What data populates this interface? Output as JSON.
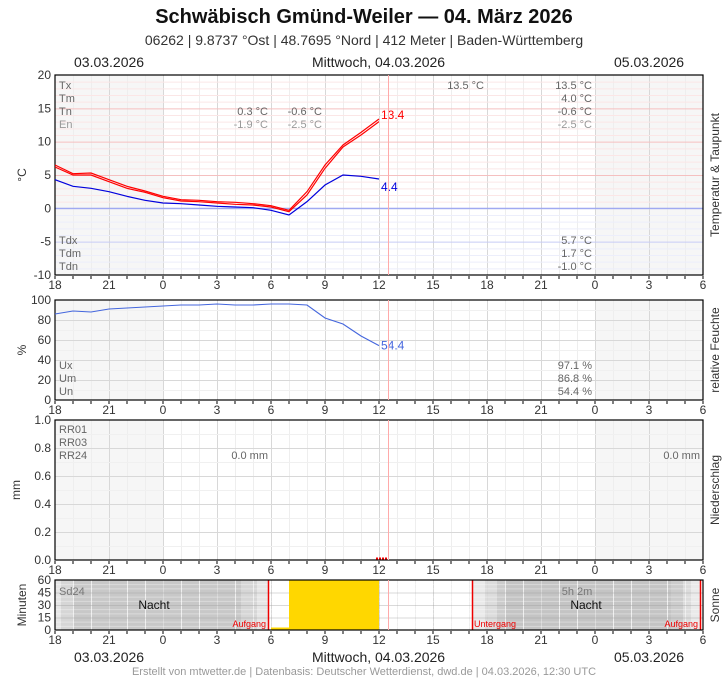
{
  "header": {
    "title": "Schwäbisch Gmünd-Weiler  —  04. März 2026",
    "subtitle": "06262  |  9.8737 °Ost  |  48.7695 °Nord  |  412 Meter  |  Baden-Württemberg",
    "date_left": "03.03.2026",
    "date_center": "Mittwoch, 04.03.2026",
    "date_right": "05.03.2026"
  },
  "footer": {
    "date_left": "03.03.2026",
    "date_center": "Mittwoch, 04.03.2026",
    "date_right": "05.03.2026",
    "credit": "Erstellt von mtwetter.de | Datenbasis: Deutscher Wetterdienst, dwd.de | 04.03.2026, 12:30 UTC"
  },
  "colors": {
    "temperature": "#ff0000",
    "dewpoint": "#0000dd",
    "humidity": "#4466dd",
    "sunshine": "#ffd700",
    "sun_event": "#ee0000",
    "now_line": "#ffaaaa"
  },
  "chart_data": [
    {
      "id": "temperature",
      "type": "line",
      "title": "Temperatur & Taupunkt",
      "ylabel": "°C",
      "ylim": [
        -10,
        20
      ],
      "yticks": [
        "20",
        "15",
        "10",
        "5",
        "0",
        "-5",
        "-10"
      ],
      "xticks": [
        "18",
        "21",
        "0",
        "3",
        "6",
        "9",
        "12",
        "15",
        "18",
        "21",
        "0",
        "3",
        "6"
      ],
      "x_hours_from_start": [
        0,
        1,
        2,
        3,
        4,
        5,
        6,
        7,
        8,
        9,
        10,
        11,
        12,
        13,
        14,
        15,
        16,
        17,
        18
      ],
      "series": [
        {
          "name": "Temperatur",
          "color": "#ff0000",
          "last_label": "13.4",
          "values": [
            6.5,
            5.2,
            5.3,
            4.3,
            3.3,
            2.6,
            1.8,
            1.3,
            1.2,
            1.0,
            0.9,
            0.7,
            0.4,
            -0.3,
            2.5,
            6.5,
            9.5,
            11.4,
            13.4
          ]
        },
        {
          "name": "Temperatur 2",
          "color": "#ff0000",
          "values": [
            6.2,
            5.0,
            5.0,
            4.0,
            3.0,
            2.4,
            1.6,
            1.1,
            1.0,
            0.8,
            0.6,
            0.5,
            0.2,
            -0.5,
            2.0,
            6.0,
            9.2,
            11.0,
            13.0
          ]
        },
        {
          "name": "Taupunkt",
          "color": "#0000dd",
          "last_label": "4.4",
          "values": [
            4.3,
            3.3,
            3.0,
            2.5,
            1.8,
            1.2,
            0.8,
            0.7,
            0.5,
            0.3,
            0.2,
            0.1,
            -0.3,
            -1.0,
            1.0,
            3.5,
            5.0,
            4.8,
            4.4
          ]
        }
      ],
      "stats_top": {
        "labels": [
          "Tx",
          "Tm",
          "Tn",
          "En"
        ],
        "day1_col1": [
          "",
          "",
          "0.3 °C",
          "-1.9 °C"
        ],
        "day1_col2": [
          "",
          "",
          "-0.6 °C",
          "-2.5 °C"
        ],
        "day2_col1": [
          "13.5 °C",
          "",
          "",
          ""
        ],
        "day2_col2": [
          "13.5 °C",
          "4.0 °C",
          "-0.6 °C",
          "-2.5 °C"
        ]
      },
      "stats_bottom": {
        "labels": [
          "Tdx",
          "Tdm",
          "Tdn"
        ],
        "values": [
          "5.7 °C",
          "1.7 °C",
          "-1.0 °C"
        ]
      }
    },
    {
      "id": "humidity",
      "type": "line",
      "title": "relative Feuchte",
      "ylabel": "%",
      "ylim": [
        0,
        100
      ],
      "yticks": [
        "100",
        "80",
        "60",
        "40",
        "20",
        "0"
      ],
      "xticks": [
        "18",
        "21",
        "0",
        "3",
        "6",
        "9",
        "12",
        "15",
        "18",
        "21",
        "0",
        "3",
        "6"
      ],
      "x_hours_from_start": [
        0,
        1,
        2,
        3,
        4,
        5,
        6,
        7,
        8,
        9,
        10,
        11,
        12,
        13,
        14,
        15,
        16,
        17,
        18
      ],
      "series": [
        {
          "name": "relative Feuchte",
          "color": "#4466dd",
          "last_label": "54.4",
          "values": [
            86,
            89,
            88,
            91,
            92,
            93,
            94,
            95,
            95,
            96,
            95,
            95,
            96,
            96,
            95,
            82,
            76,
            64,
            54.4
          ]
        }
      ],
      "stats": {
        "labels": [
          "Ux",
          "Um",
          "Un"
        ],
        "values": [
          "97.1 %",
          "86.8 %",
          "54.4 %"
        ]
      }
    },
    {
      "id": "precipitation",
      "type": "bar",
      "title": "Niederschlag",
      "ylabel": "mm",
      "ylim": [
        0,
        1.0
      ],
      "yticks": [
        "1.0",
        "0.8",
        "0.6",
        "0.4",
        "0.2",
        "0.0"
      ],
      "xticks": [
        "18",
        "21",
        "0",
        "3",
        "6",
        "9",
        "12",
        "15",
        "18",
        "21",
        "0",
        "3",
        "6"
      ],
      "values": [
        0,
        0,
        0,
        0,
        0,
        0,
        0,
        0,
        0,
        0,
        0,
        0,
        0,
        0,
        0,
        0,
        0,
        0,
        0
      ],
      "stats": {
        "labels": [
          "RR01",
          "RR03",
          "RR24"
        ],
        "day1_value": "0.0 mm",
        "day2_value": "0.0 mm"
      }
    },
    {
      "id": "sunshine",
      "type": "bar",
      "title": "Sonne",
      "ylabel": "Minuten",
      "ylim": [
        0,
        60
      ],
      "yticks": [
        "60",
        "45",
        "30",
        "15",
        "0"
      ],
      "xticks": [
        "18",
        "21",
        "0",
        "3",
        "6",
        "9",
        "12",
        "15",
        "18",
        "21",
        "0",
        "3",
        "6"
      ],
      "hours": [
        "6",
        "7",
        "8",
        "9",
        "10",
        "11"
      ],
      "values": [
        3,
        60,
        60,
        60,
        60,
        60
      ],
      "labels": {
        "sd24": "Sd24",
        "sd_total": "5h 2m",
        "night": "Nacht",
        "sunrise": "Aufgang",
        "sunset": "Untergang"
      }
    }
  ]
}
